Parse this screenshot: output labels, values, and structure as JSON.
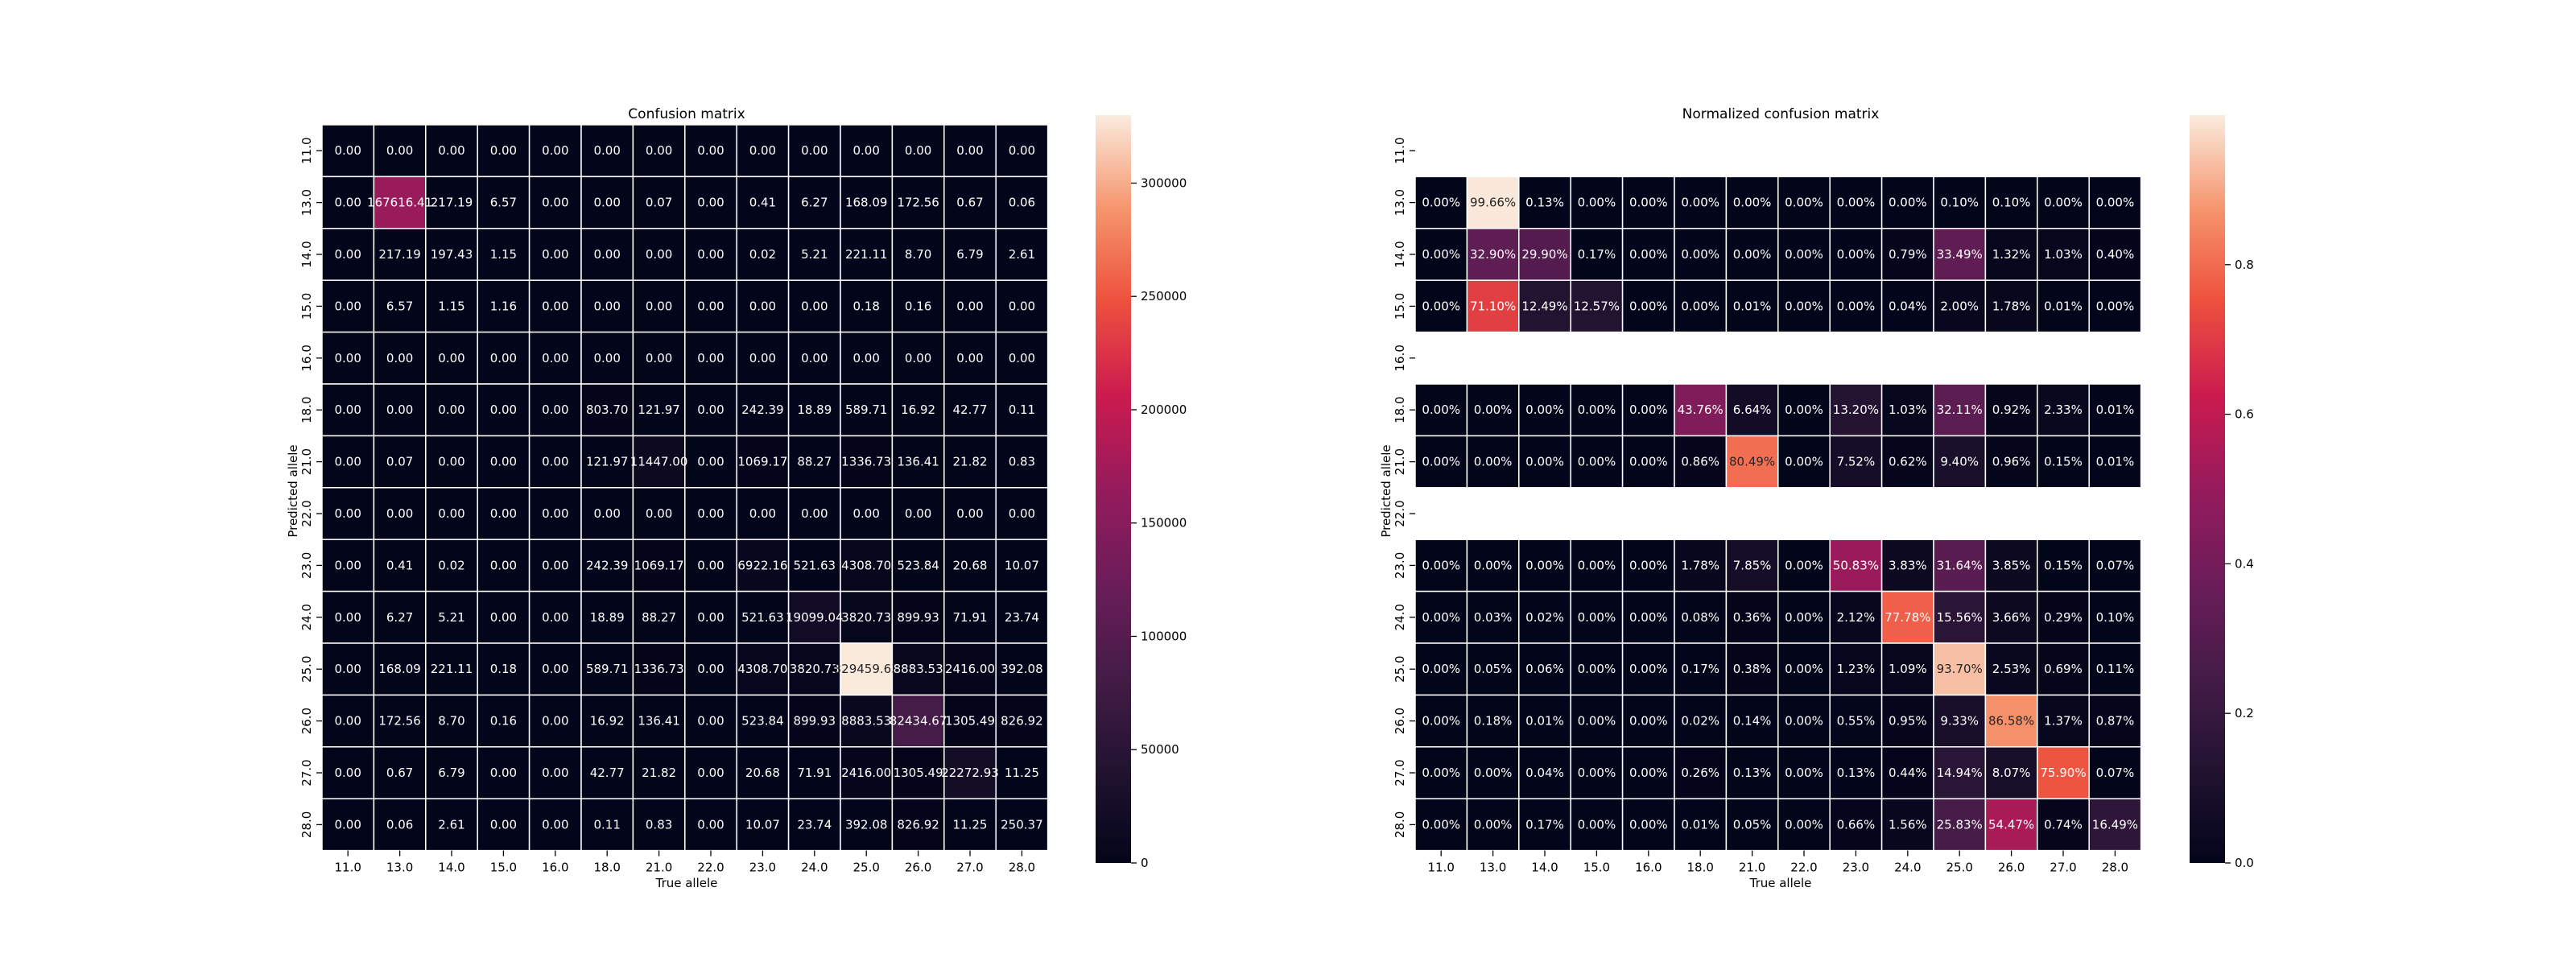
{
  "chart_data": [
    {
      "type": "heatmap",
      "title": "Confusion matrix",
      "xlabel": "True allele",
      "ylabel": "Predicted allele",
      "x_categories": [
        "11.0",
        "13.0",
        "14.0",
        "15.0",
        "16.0",
        "18.0",
        "21.0",
        "22.0",
        "23.0",
        "24.0",
        "25.0",
        "26.0",
        "27.0",
        "28.0"
      ],
      "y_categories": [
        "11.0",
        "13.0",
        "14.0",
        "15.0",
        "16.0",
        "18.0",
        "21.0",
        "22.0",
        "23.0",
        "24.0",
        "25.0",
        "26.0",
        "27.0",
        "28.0"
      ],
      "values": [
        [
          0,
          0,
          0,
          0,
          0,
          0,
          0,
          0,
          0,
          0,
          0,
          0,
          0,
          0
        ],
        [
          0,
          167616.41,
          217.19,
          6.57,
          0,
          0,
          0.07,
          0,
          0.41,
          6.27,
          168.09,
          172.56,
          0.67,
          0.06
        ],
        [
          0,
          217.19,
          197.43,
          1.15,
          0,
          0,
          0,
          0,
          0.02,
          5.21,
          221.11,
          8.7,
          6.79,
          2.61
        ],
        [
          0,
          6.57,
          1.15,
          1.16,
          0,
          0,
          0,
          0,
          0,
          0,
          0.18,
          0.16,
          0,
          0
        ],
        [
          0,
          0,
          0,
          0,
          0,
          0,
          0,
          0,
          0,
          0,
          0,
          0,
          0,
          0
        ],
        [
          0,
          0,
          0,
          0,
          0,
          803.7,
          121.97,
          0,
          242.39,
          18.89,
          589.71,
          16.92,
          42.77,
          0.11
        ],
        [
          0,
          0.07,
          0,
          0,
          0,
          121.97,
          11447.0,
          0,
          1069.17,
          88.27,
          1336.73,
          136.41,
          21.82,
          0.83
        ],
        [
          0,
          0,
          0,
          0,
          0,
          0,
          0,
          0,
          0,
          0,
          0,
          0,
          0,
          0
        ],
        [
          0,
          0.41,
          0.02,
          0,
          0,
          242.39,
          1069.17,
          0,
          6922.16,
          521.63,
          4308.7,
          523.84,
          20.68,
          10.07
        ],
        [
          0,
          6.27,
          5.21,
          0,
          0,
          18.89,
          88.27,
          0,
          521.63,
          19099.04,
          3820.73,
          899.93,
          71.91,
          23.74
        ],
        [
          0,
          168.09,
          221.11,
          0.18,
          0,
          589.71,
          1336.73,
          0,
          4308.7,
          3820.73,
          329459.63,
          8883.53,
          2416.0,
          392.08
        ],
        [
          0,
          172.56,
          8.7,
          0.16,
          0,
          16.92,
          136.41,
          0,
          523.84,
          899.93,
          8883.53,
          82434.67,
          1305.49,
          826.92
        ],
        [
          0,
          0.67,
          6.79,
          0,
          0,
          42.77,
          21.82,
          0,
          20.68,
          71.91,
          2416.0,
          1305.49,
          22272.93,
          11.25
        ],
        [
          0,
          0.06,
          2.61,
          0,
          0,
          0.11,
          0.83,
          0,
          10.07,
          23.74,
          392.08,
          826.92,
          11.25,
          250.37
        ]
      ],
      "labels": [
        [
          "0.00",
          "0.00",
          "0.00",
          "0.00",
          "0.00",
          "0.00",
          "0.00",
          "0.00",
          "0.00",
          "0.00",
          "0.00",
          "0.00",
          "0.00",
          "0.00"
        ],
        [
          "0.00",
          "167616.41",
          "217.19",
          "6.57",
          "0.00",
          "0.00",
          "0.07",
          "0.00",
          "0.41",
          "6.27",
          "168.09",
          "172.56",
          "0.67",
          "0.06"
        ],
        [
          "0.00",
          "217.19",
          "197.43",
          "1.15",
          "0.00",
          "0.00",
          "0.00",
          "0.00",
          "0.02",
          "5.21",
          "221.11",
          "8.70",
          "6.79",
          "2.61"
        ],
        [
          "0.00",
          "6.57",
          "1.15",
          "1.16",
          "0.00",
          "0.00",
          "0.00",
          "0.00",
          "0.00",
          "0.00",
          "0.18",
          "0.16",
          "0.00",
          "0.00"
        ],
        [
          "0.00",
          "0.00",
          "0.00",
          "0.00",
          "0.00",
          "0.00",
          "0.00",
          "0.00",
          "0.00",
          "0.00",
          "0.00",
          "0.00",
          "0.00",
          "0.00"
        ],
        [
          "0.00",
          "0.00",
          "0.00",
          "0.00",
          "0.00",
          "803.70",
          "121.97",
          "0.00",
          "242.39",
          "18.89",
          "589.71",
          "16.92",
          "42.77",
          "0.11"
        ],
        [
          "0.00",
          "0.07",
          "0.00",
          "0.00",
          "0.00",
          "121.97",
          "11447.00",
          "0.00",
          "1069.17",
          "88.27",
          "1336.73",
          "136.41",
          "21.82",
          "0.83"
        ],
        [
          "0.00",
          "0.00",
          "0.00",
          "0.00",
          "0.00",
          "0.00",
          "0.00",
          "0.00",
          "0.00",
          "0.00",
          "0.00",
          "0.00",
          "0.00",
          "0.00"
        ],
        [
          "0.00",
          "0.41",
          "0.02",
          "0.00",
          "0.00",
          "242.39",
          "1069.17",
          "0.00",
          "6922.16",
          "521.63",
          "4308.70",
          "523.84",
          "20.68",
          "10.07"
        ],
        [
          "0.00",
          "6.27",
          "5.21",
          "0.00",
          "0.00",
          "18.89",
          "88.27",
          "0.00",
          "521.63",
          "19099.04",
          "3820.73",
          "899.93",
          "71.91",
          "23.74"
        ],
        [
          "0.00",
          "168.09",
          "221.11",
          "0.18",
          "0.00",
          "589.71",
          "1336.73",
          "0.00",
          "4308.70",
          "3820.73",
          "329459.63",
          "8883.53",
          "2416.00",
          "392.08"
        ],
        [
          "0.00",
          "172.56",
          "8.70",
          "0.16",
          "0.00",
          "16.92",
          "136.41",
          "0.00",
          "523.84",
          "899.93",
          "8883.53",
          "82434.67",
          "1305.49",
          "826.92"
        ],
        [
          "0.00",
          "0.67",
          "6.79",
          "0.00",
          "0.00",
          "42.77",
          "21.82",
          "0.00",
          "20.68",
          "71.91",
          "2416.00",
          "1305.49",
          "22272.93",
          "11.25"
        ],
        [
          "0.00",
          "0.06",
          "2.61",
          "0.00",
          "0.00",
          "0.11",
          "0.83",
          "0.00",
          "10.07",
          "23.74",
          "392.08",
          "826.92",
          "11.25",
          "250.37"
        ]
      ],
      "vmin": 0,
      "vmax": 330000,
      "colorbar_ticks": [
        0,
        50000,
        100000,
        150000,
        200000,
        250000,
        300000
      ],
      "colormap": "rocket",
      "grid_color": "#ffffff"
    },
    {
      "type": "heatmap",
      "title": "Normalized confusion matrix",
      "xlabel": "True allele",
      "ylabel": "Predicted allele",
      "x_categories": [
        "11.0",
        "13.0",
        "14.0",
        "15.0",
        "16.0",
        "18.0",
        "21.0",
        "22.0",
        "23.0",
        "24.0",
        "25.0",
        "26.0",
        "27.0",
        "28.0"
      ],
      "y_categories": [
        "11.0",
        "13.0",
        "14.0",
        "15.0",
        "16.0",
        "18.0",
        "21.0",
        "22.0",
        "23.0",
        "24.0",
        "25.0",
        "26.0",
        "27.0",
        "28.0"
      ],
      "values": [
        null,
        [
          0.0,
          0.9966,
          0.0013,
          0.0,
          0.0,
          0.0,
          0.0,
          0.0,
          0.0,
          0.0,
          0.001,
          0.001,
          0.0,
          0.0
        ],
        [
          0.0,
          0.329,
          0.299,
          0.0017,
          0.0,
          0.0,
          0.0,
          0.0,
          0.0,
          0.0079,
          0.3349,
          0.0132,
          0.0103,
          0.004
        ],
        [
          0.0,
          0.711,
          0.1249,
          0.1257,
          0.0,
          0.0,
          0.0001,
          0.0,
          0.0,
          0.0004,
          0.02,
          0.0178,
          0.0001,
          0.0
        ],
        null,
        [
          0.0,
          0.0,
          0.0,
          0.0,
          0.0,
          0.4376,
          0.0664,
          0.0,
          0.132,
          0.0103,
          0.3211,
          0.0092,
          0.0233,
          0.0001
        ],
        [
          0.0,
          0.0,
          0.0,
          0.0,
          0.0,
          0.0086,
          0.8049,
          0.0,
          0.0752,
          0.0062,
          0.094,
          0.0096,
          0.0015,
          0.0001
        ],
        null,
        [
          0.0,
          0.0,
          0.0,
          0.0,
          0.0,
          0.0178,
          0.0785,
          0.0,
          0.5083,
          0.0383,
          0.3164,
          0.0385,
          0.0015,
          0.0007
        ],
        [
          0.0,
          0.0003,
          0.0002,
          0.0,
          0.0,
          0.0008,
          0.0036,
          0.0,
          0.0212,
          0.7778,
          0.1556,
          0.0366,
          0.0029,
          0.001
        ],
        [
          0.0,
          0.0005,
          0.0006,
          0.0,
          0.0,
          0.0017,
          0.0038,
          0.0,
          0.0123,
          0.0109,
          0.937,
          0.0253,
          0.0069,
          0.0011
        ],
        [
          0.0,
          0.0018,
          0.0001,
          0.0,
          0.0,
          0.0002,
          0.0014,
          0.0,
          0.0055,
          0.0095,
          0.0933,
          0.8658,
          0.0137,
          0.0087
        ],
        [
          0.0,
          0.0,
          0.0004,
          0.0,
          0.0,
          0.0026,
          0.0013,
          0.0,
          0.0013,
          0.0044,
          0.1494,
          0.0807,
          0.759,
          0.0007
        ],
        [
          0.0,
          0.0,
          0.0017,
          0.0,
          0.0,
          0.0001,
          0.0005,
          0.0,
          0.0066,
          0.0156,
          0.2583,
          0.5447,
          0.0074,
          0.1649
        ]
      ],
      "labels": [
        null,
        [
          "0.00%",
          "99.66%",
          "0.13%",
          "0.00%",
          "0.00%",
          "0.00%",
          "0.00%",
          "0.00%",
          "0.00%",
          "0.00%",
          "0.10%",
          "0.10%",
          "0.00%",
          "0.00%"
        ],
        [
          "0.00%",
          "32.90%",
          "29.90%",
          "0.17%",
          "0.00%",
          "0.00%",
          "0.00%",
          "0.00%",
          "0.00%",
          "0.79%",
          "33.49%",
          "1.32%",
          "1.03%",
          "0.40%"
        ],
        [
          "0.00%",
          "71.10%",
          "12.49%",
          "12.57%",
          "0.00%",
          "0.00%",
          "0.01%",
          "0.00%",
          "0.00%",
          "0.04%",
          "2.00%",
          "1.78%",
          "0.01%",
          "0.00%"
        ],
        null,
        [
          "0.00%",
          "0.00%",
          "0.00%",
          "0.00%",
          "0.00%",
          "43.76%",
          "6.64%",
          "0.00%",
          "13.20%",
          "1.03%",
          "32.11%",
          "0.92%",
          "2.33%",
          "0.01%"
        ],
        [
          "0.00%",
          "0.00%",
          "0.00%",
          "0.00%",
          "0.00%",
          "0.86%",
          "80.49%",
          "0.00%",
          "7.52%",
          "0.62%",
          "9.40%",
          "0.96%",
          "0.15%",
          "0.01%"
        ],
        null,
        [
          "0.00%",
          "0.00%",
          "0.00%",
          "0.00%",
          "0.00%",
          "1.78%",
          "7.85%",
          "0.00%",
          "50.83%",
          "3.83%",
          "31.64%",
          "3.85%",
          "0.15%",
          "0.07%"
        ],
        [
          "0.00%",
          "0.03%",
          "0.02%",
          "0.00%",
          "0.00%",
          "0.08%",
          "0.36%",
          "0.00%",
          "2.12%",
          "77.78%",
          "15.56%",
          "3.66%",
          "0.29%",
          "0.10%"
        ],
        [
          "0.00%",
          "0.05%",
          "0.06%",
          "0.00%",
          "0.00%",
          "0.17%",
          "0.38%",
          "0.00%",
          "1.23%",
          "1.09%",
          "93.70%",
          "2.53%",
          "0.69%",
          "0.11%"
        ],
        [
          "0.00%",
          "0.18%",
          "0.01%",
          "0.00%",
          "0.00%",
          "0.02%",
          "0.14%",
          "0.00%",
          "0.55%",
          "0.95%",
          "9.33%",
          "86.58%",
          "1.37%",
          "0.87%"
        ],
        [
          "0.00%",
          "0.00%",
          "0.04%",
          "0.00%",
          "0.00%",
          "0.26%",
          "0.13%",
          "0.00%",
          "0.13%",
          "0.44%",
          "14.94%",
          "8.07%",
          "75.90%",
          "0.07%"
        ],
        [
          "0.00%",
          "0.00%",
          "0.17%",
          "0.00%",
          "0.00%",
          "0.01%",
          "0.05%",
          "0.00%",
          "0.66%",
          "1.56%",
          "25.83%",
          "54.47%",
          "0.74%",
          "16.49%"
        ]
      ],
      "vmin": 0,
      "vmax": 1,
      "colorbar_ticks": [
        0.0,
        0.2,
        0.4,
        0.6,
        0.8
      ],
      "colorbar_tick_labels": [
        "0.0",
        "0.2",
        "0.4",
        "0.6",
        "0.8"
      ],
      "colormap": "rocket",
      "grid_color": "#ffffff"
    }
  ]
}
